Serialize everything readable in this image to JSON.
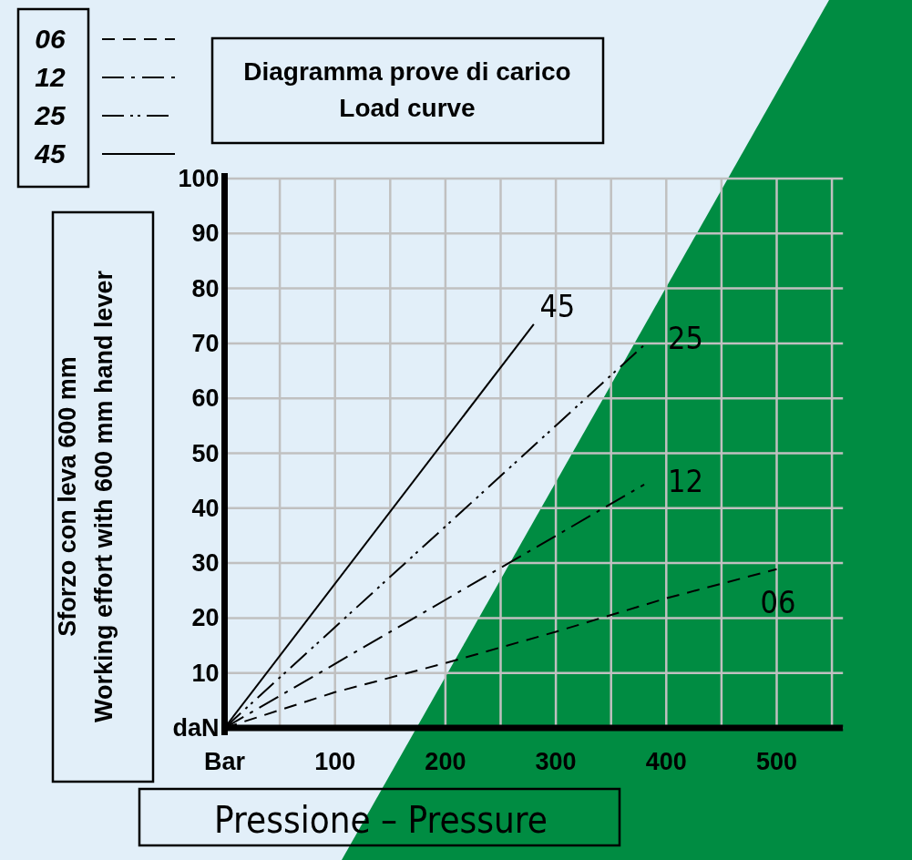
{
  "chart_data": {
    "type": "line",
    "title": "Diagramma prove di carico",
    "subtitle": "Load curve",
    "xlabel": "Pressione – Pressure",
    "ylabel": "Sforzo con leva 600 mm\nWorking effort with 600 mm hand lever",
    "xlim": [
      0,
      560
    ],
    "ylim": [
      0,
      100
    ],
    "xticks": [
      {
        "value": 0,
        "label": "Bar"
      },
      {
        "value": 50,
        "label": null
      },
      100,
      {
        "value": 150,
        "label": null
      },
      200,
      {
        "value": 250,
        "label": null
      },
      300,
      {
        "value": 350,
        "label": null
      },
      400,
      {
        "value": 450,
        "label": null
      },
      500,
      {
        "value": 550,
        "label": null
      }
    ],
    "yticks": [
      {
        "value": 0,
        "label": "daN"
      },
      10,
      20,
      30,
      40,
      50,
      60,
      70,
      80,
      90,
      100
    ],
    "grid": true,
    "legend": "top left",
    "marker": "none",
    "series": [
      {
        "name": "06",
        "color": "#000000",
        "line_style": "dashed",
        "x": [
          0,
          100,
          200,
          300,
          400,
          500
        ],
        "values": [
          0,
          6.5,
          11.8,
          17.5,
          23.6,
          28.9
        ]
      },
      {
        "name": "12",
        "color": "#000000",
        "line_style": "dashdot",
        "x": [
          0,
          380
        ],
        "values": [
          0,
          44.3
        ]
      },
      {
        "name": "25",
        "color": "#000000",
        "line_style": "dashdotdot",
        "x": [
          0,
          380
        ],
        "values": [
          0,
          69.7
        ]
      },
      {
        "name": "45",
        "color": "#000000",
        "line_style": "solid",
        "x": [
          0,
          280
        ],
        "values": [
          0,
          73.5
        ]
      }
    ]
  }
}
